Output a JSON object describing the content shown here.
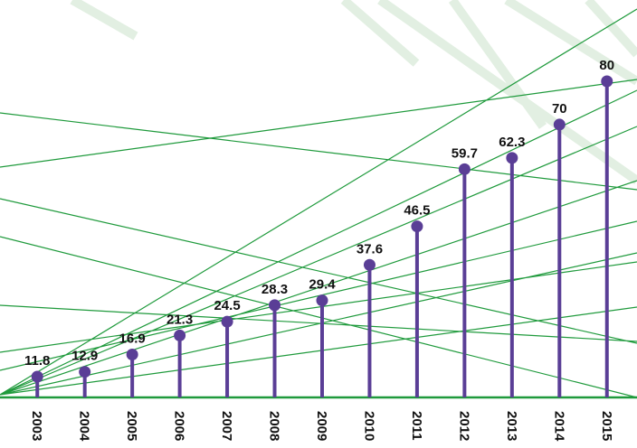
{
  "chart_data": {
    "type": "lollipop",
    "categories": [
      "2003",
      "2004",
      "2005",
      "2006",
      "2007",
      "2008",
      "2009",
      "2010",
      "2011",
      "2012",
      "2013",
      "2014",
      "2015"
    ],
    "values": [
      11.8,
      12.9,
      16.9,
      21.3,
      24.5,
      28.3,
      29.4,
      37.6,
      46.5,
      59.7,
      62.3,
      70,
      80
    ],
    "color": "#5a3e96",
    "ylim": [
      7,
      82
    ]
  }
}
